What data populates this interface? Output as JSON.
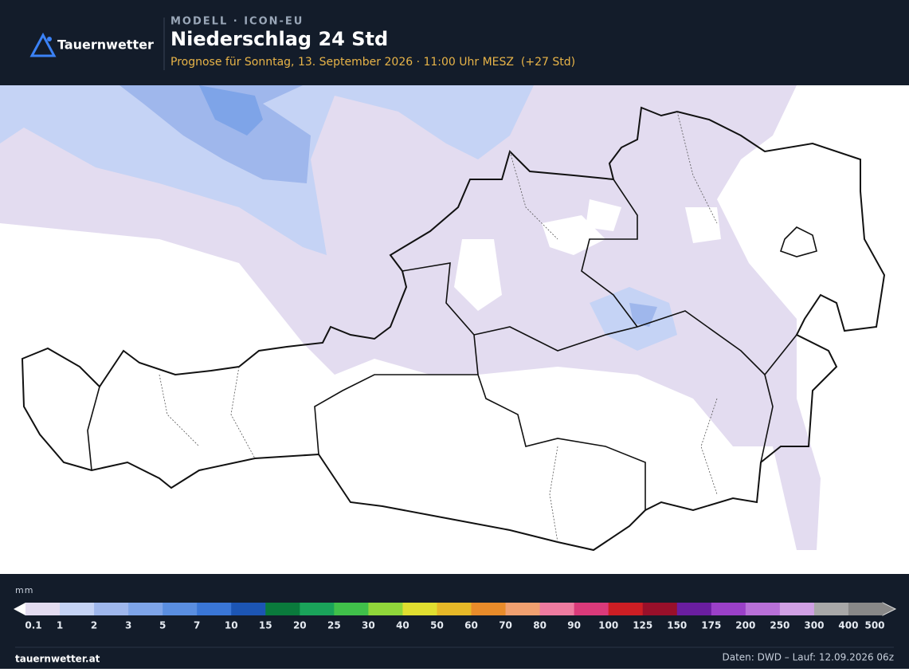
{
  "header": {
    "brand": "Tauernwetter",
    "model": "MODELL · ICON-EU",
    "title": "Niederschlag 24 Std",
    "subtitle": "Prognose für Sonntag, 13. September 2026 · 11:00 Uhr MESZ  (+27 Std)"
  },
  "legend": {
    "unit": "mm",
    "ticks": [
      0.1,
      1,
      2,
      3,
      5,
      7,
      10,
      15,
      20,
      25,
      30,
      40,
      50,
      60,
      70,
      80,
      90,
      100,
      125,
      150,
      175,
      200,
      250,
      300,
      400,
      500
    ],
    "colors": [
      "#e3dcf0",
      "#c5d3f5",
      "#9fb7ec",
      "#7ea4e8",
      "#5a8ee0",
      "#3a76d6",
      "#1c55b4",
      "#0a7a3c",
      "#1aa35a",
      "#40c04a",
      "#90d63a",
      "#e0de30",
      "#e6b828",
      "#e88b2a",
      "#f0a070",
      "#ee7ba0",
      "#da3a7a",
      "#cc1e24",
      "#98102a",
      "#6a1ea0",
      "#9a40c8",
      "#b870d8",
      "#d0a0e4",
      "#a8a8a8",
      "#888888"
    ]
  },
  "footer": {
    "site": "tauernwetter.at",
    "source": "Daten: DWD – Lauf: 12.09.2026 06z"
  }
}
